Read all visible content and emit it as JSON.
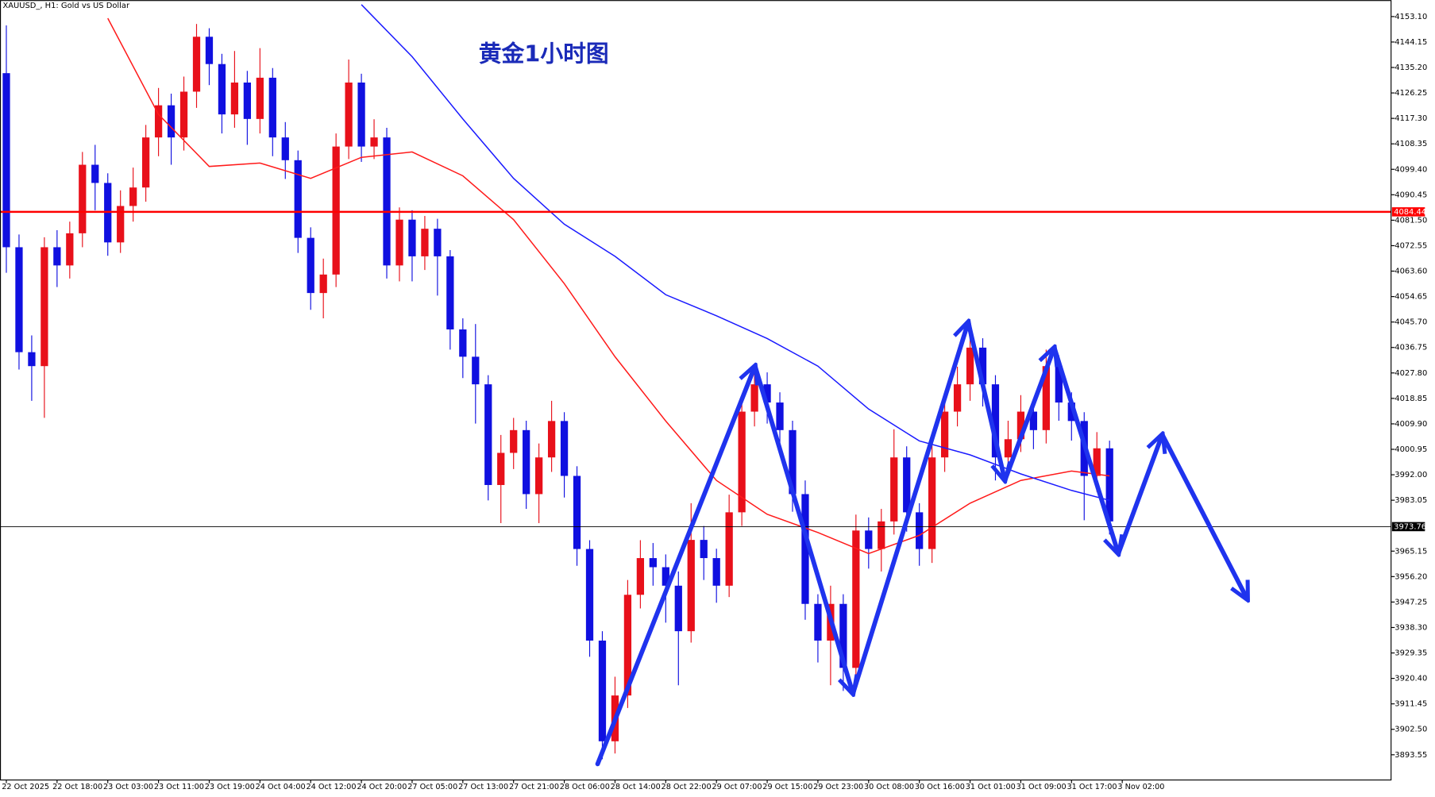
{
  "chart_data": {
    "type": "candlestick",
    "title": "黄金1小时图",
    "symbol_label": "XAUUSD_, H1:  Gold vs US Dollar",
    "up_color": "#e8101a",
    "down_color": "#1010e0",
    "ylim": [
      3884.85,
      4158.89
    ],
    "xlim": [
      -0.5,
      109.2
    ],
    "yticks": [
      {
        "value": 4153.1,
        "label": "4153.10"
      },
      4144.15,
      {
        "value": 4135.2,
        "label": "4135.20"
      },
      4126.25,
      {
        "value": 4117.3,
        "label": "4117.30"
      },
      4108.35,
      {
        "value": 4099.4,
        "label": "4099.40"
      },
      4090.45,
      {
        "value": 4081.5,
        "label": "4081.50"
      },
      4072.55,
      {
        "value": 4063.6,
        "label": "4063.60"
      },
      4054.65,
      {
        "value": 4045.7,
        "label": "4045.70"
      },
      4036.75,
      {
        "value": 4027.8,
        "label": "4027.80"
      },
      4018.85,
      {
        "value": 4009.9,
        "label": "4009.90"
      },
      4000.95,
      {
        "value": 3992,
        "label": "3992.00"
      },
      3983.05,
      3965.15,
      {
        "value": 3956.2,
        "label": "3956.20"
      },
      3947.25,
      {
        "value": 3938.3,
        "label": "3938.30"
      },
      3929.35,
      {
        "value": 3920.4,
        "label": "3920.40"
      },
      3911.45,
      {
        "value": 3902.5,
        "label": "3902.50"
      },
      3893.55
    ],
    "xticks": [
      {
        "value": 0,
        "label": "22 Oct 2025"
      },
      {
        "value": 4,
        "label": "22 Oct 18:00"
      },
      {
        "value": 8,
        "label": "23 Oct 03:00"
      },
      {
        "value": 12,
        "label": "23 Oct 11:00"
      },
      {
        "value": 16,
        "label": "23 Oct 19:00"
      },
      {
        "value": 20,
        "label": "24 Oct 04:00"
      },
      {
        "value": 24,
        "label": "24 Oct 12:00"
      },
      {
        "value": 28,
        "label": "24 Oct 20:00"
      },
      {
        "value": 32,
        "label": "27 Oct 05:00"
      },
      {
        "value": 36,
        "label": "27 Oct 13:00"
      },
      {
        "value": 40,
        "label": "27 Oct 21:00"
      },
      {
        "value": 44,
        "label": "28 Oct 06:00"
      },
      {
        "value": 48,
        "label": "28 Oct 14:00"
      },
      {
        "value": 52,
        "label": "28 Oct 22:00"
      },
      {
        "value": 56,
        "label": "29 Oct 07:00"
      },
      {
        "value": 60,
        "label": "29 Oct 15:00"
      },
      {
        "value": 64,
        "label": "29 Oct 23:00"
      },
      {
        "value": 68,
        "label": "30 Oct 08:00"
      },
      {
        "value": 72,
        "label": "30 Oct 16:00"
      },
      {
        "value": 76,
        "label": "31 Oct 01:00"
      },
      {
        "value": 80,
        "label": "31 Oct 09:00"
      },
      {
        "value": 84,
        "label": "31 Oct 17:00"
      },
      {
        "value": 88,
        "label": "3 Nov 02:00"
      }
    ],
    "open": [
      4133.2,
      4072.0,
      4035.1,
      4030.2,
      4072.0,
      4065.6,
      4076.9,
      4101.0,
      4094.6,
      4073.7,
      4086.5,
      4093.0,
      4110.6,
      4121.9,
      4110.6,
      4126.7,
      4146.0,
      4136.4,
      4118.7,
      4129.9,
      4117.1,
      4131.6,
      4110.6,
      4102.6,
      4075.3,
      4055.9,
      4062.4,
      4107.4,
      4129.9,
      4107.4,
      4110.6,
      4065.6,
      4081.7,
      4068.8,
      4078.5,
      4068.8,
      4043.1,
      4033.5,
      4023.8,
      3988.4,
      3999.7,
      4007.7,
      3985.2,
      3998.1,
      4010.9,
      3991.6,
      3965.9,
      3933.7,
      3898.3,
      3914.4,
      3949.8,
      3962.7,
      3959.5,
      3953.0,
      3937.0,
      3969.1,
      3962.7,
      3953.0,
      3978.8,
      4014.2,
      4023.8,
      4017.4,
      4007.7,
      3985.2,
      3946.6,
      3933.7,
      3946.6,
      3924.1,
      3972.4,
      3965.9,
      3975.6,
      3998.1,
      3978.8,
      3965.9,
      3998.1,
      4014.2,
      4023.8,
      4036.7,
      4023.8,
      3998.1,
      4004.5,
      4014.2,
      4007.7,
      4030.2,
      4017.4,
      4010.9,
      3991.6,
      4001.3
    ],
    "high": [
      4150.0,
      4076.5,
      4041.0,
      4075.5,
      4078.0,
      4081.0,
      4105.5,
      4108.0,
      4098.0,
      4092.0,
      4100.0,
      4115.0,
      4128.0,
      4126.0,
      4132.0,
      4150.5,
      4149.0,
      4140.0,
      4141.0,
      4134.0,
      4142.0,
      4135.0,
      4116.0,
      4106.0,
      4079.0,
      4068.0,
      4112.0,
      4138.0,
      4133.0,
      4117.0,
      4114.0,
      4086.0,
      4085.0,
      4083.0,
      4082.0,
      4071.0,
      4047.0,
      4045.0,
      4027.0,
      4006.0,
      4012.0,
      4011.0,
      4003.0,
      4018.0,
      4014.0,
      3995.0,
      3969.0,
      3937.0,
      3921.0,
      3955.0,
      3969.0,
      3968.0,
      3964.0,
      3958.0,
      3982.0,
      3974.0,
      3966.0,
      3985.0,
      4020.0,
      4030.0,
      4028.0,
      4021.0,
      4011.0,
      3990.0,
      3950.0,
      3953.0,
      3950.0,
      3978.0,
      3977.0,
      3980.0,
      4008.0,
      4002.0,
      3982.0,
      4005.0,
      4019.0,
      4030.0,
      4042.0,
      4040.0,
      4027.0,
      4011.0,
      4020.0,
      4018.0,
      4036.0,
      4034.0,
      4021.0,
      4014.0,
      4007.0,
      4004.0
    ],
    "low": [
      4063.0,
      4029.0,
      4018.0,
      4012.0,
      4058.0,
      4061.0,
      4072.0,
      4085.0,
      4069.0,
      4070.0,
      4081.0,
      4088.0,
      4104.0,
      4101.0,
      4106.0,
      4121.0,
      4129.0,
      4112.0,
      4114.0,
      4108.0,
      4112.0,
      4104.0,
      4096.0,
      4070.0,
      4050.0,
      4047.0,
      4058.0,
      4103.0,
      4102.0,
      4103.0,
      4061.0,
      4060.0,
      4060.0,
      4064.0,
      4055.0,
      4036.0,
      4026.0,
      4010.0,
      3983.0,
      3975.0,
      3994.0,
      3980.0,
      3975.0,
      3993.0,
      3984.0,
      3960.0,
      3928.0,
      3892.0,
      3894.0,
      3910.0,
      3945.0,
      3953.0,
      3940.0,
      3918.0,
      3933.0,
      3955.0,
      3947.0,
      3949.0,
      3974.0,
      4009.0,
      4010.0,
      4002.0,
      3979.0,
      3941.0,
      3926.0,
      3918.0,
      3916.0,
      3919.0,
      3959.0,
      3958.0,
      3971.0,
      3972.0,
      3960.0,
      3961.0,
      3993.0,
      4009.0,
      4018.0,
      4016.0,
      3990.0,
      3993.0,
      4000.0,
      4001.0,
      4003.0,
      4011.0,
      4004.0,
      3976.0,
      3986.0,
      3971.0
    ],
    "close": [
      4072.0,
      4035.1,
      4030.2,
      4072.0,
      4065.6,
      4076.9,
      4101.0,
      4094.6,
      4073.7,
      4086.5,
      4093.0,
      4110.6,
      4121.9,
      4110.6,
      4126.7,
      4146.0,
      4136.4,
      4118.7,
      4129.9,
      4117.1,
      4131.6,
      4110.6,
      4102.6,
      4075.3,
      4055.9,
      4062.4,
      4107.4,
      4129.9,
      4107.4,
      4110.6,
      4065.6,
      4081.7,
      4068.8,
      4078.5,
      4068.8,
      4043.1,
      4033.5,
      4023.8,
      3988.4,
      3999.7,
      4007.7,
      3985.2,
      3998.1,
      4010.9,
      3991.6,
      3965.9,
      3933.7,
      3898.3,
      3914.4,
      3949.8,
      3962.7,
      3959.5,
      3953.0,
      3937.0,
      3969.1,
      3962.7,
      3953.0,
      3978.8,
      4014.2,
      4023.8,
      4017.4,
      4007.7,
      3985.2,
      3946.6,
      3933.7,
      3946.6,
      3924.1,
      3972.4,
      3965.9,
      3975.6,
      3998.1,
      3978.8,
      3965.9,
      3998.1,
      4014.2,
      4023.8,
      4036.7,
      4023.8,
      3998.1,
      4004.5,
      4014.2,
      4007.7,
      4030.2,
      4017.4,
      4010.9,
      3991.6,
      4001.3,
      3975.6
    ],
    "moving_averages": [
      {
        "color": "#ff1a1a",
        "x": [
          8,
          12,
          16,
          20,
          24,
          28,
          32,
          36,
          40,
          44,
          48,
          52,
          56,
          60,
          64,
          68,
          72,
          76,
          80,
          84,
          87
        ],
        "values": [
          4152.5,
          4118.7,
          4100.4,
          4101.6,
          4096.2,
          4103.6,
          4105.5,
          4097.1,
          4081.7,
          4059.2,
          4033.5,
          4010.9,
          3990.0,
          3978.1,
          3971.7,
          3964.3,
          3970.7,
          3982.0,
          3990.0,
          3993.3,
          3991.6
        ]
      },
      {
        "color": "#1a1aff",
        "x": [
          28,
          32,
          36,
          40,
          44,
          48,
          52,
          56,
          60,
          64,
          68,
          72,
          76,
          80,
          84,
          87
        ],
        "values": [
          4157.3,
          4139.0,
          4117.1,
          4096.2,
          4080.1,
          4068.8,
          4055.3,
          4047.9,
          4039.9,
          4030.2,
          4015.1,
          4003.9,
          3999.0,
          3992.3,
          3986.5,
          3983.0
        ]
      }
    ],
    "hlines": [
      {
        "value": 4084.44,
        "color": "#ff0000",
        "width": 2.2
      },
      {
        "value": 3973.76,
        "color": "#000000",
        "width": 0.8
      }
    ]
  }
}
